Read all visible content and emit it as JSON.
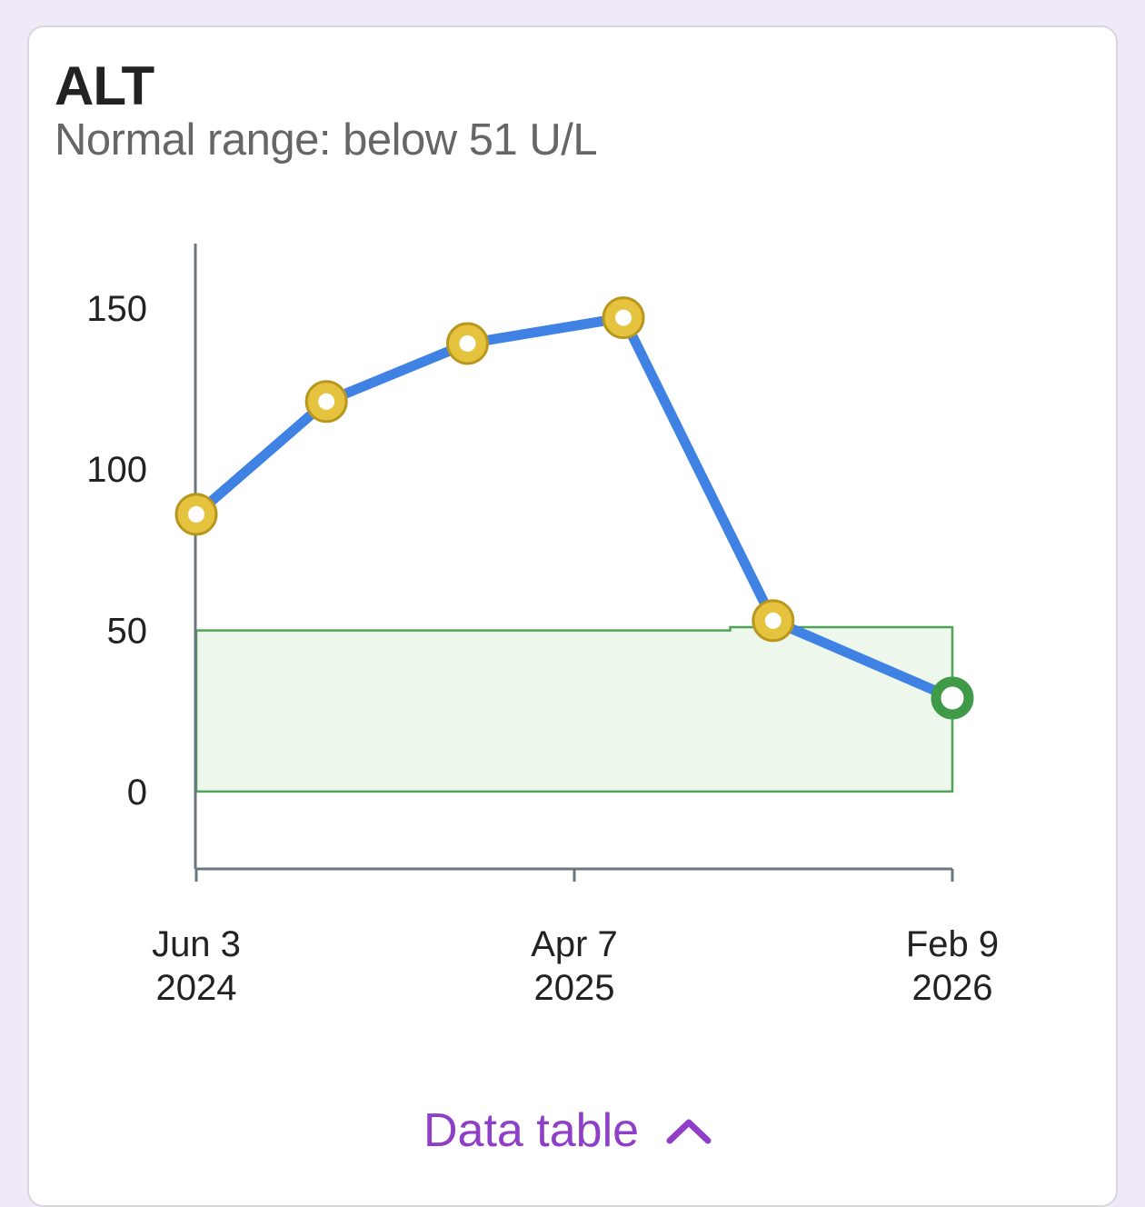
{
  "card": {
    "title": "ALT",
    "subtitle": "Normal range: below 51 U/L",
    "data_table_label": "Data table"
  },
  "colors": {
    "line": "#3f82e4",
    "point_fill": "#e6c33f",
    "point_stroke": "#b9971f",
    "latest_point": "#3f9b48",
    "normal_fill": "#edf7ec",
    "normal_stroke": "#4ea356",
    "axis": "#6b7780",
    "link": "#8f3fc7"
  },
  "chart_data": {
    "type": "line",
    "title": "ALT",
    "ylabel": "",
    "xlabel": "",
    "ylim": [
      -24,
      170
    ],
    "yticks": [
      0,
      50,
      100,
      150
    ],
    "x_ticks": [
      {
        "date": "2024-06-03",
        "line1": "Jun 3",
        "line2": "2024"
      },
      {
        "date": "2025-04-07",
        "line1": "Apr 7",
        "line2": "2025"
      },
      {
        "date": "2026-02-09",
        "line1": "Feb 9",
        "line2": "2026"
      }
    ],
    "xlim": [
      "2024-06-03",
      "2026-02-09"
    ],
    "series": [
      {
        "points": [
          {
            "date": "2024-06-03",
            "value": 86
          },
          {
            "date": "2024-09-17",
            "value": 121
          },
          {
            "date": "2025-01-10",
            "value": 139
          },
          {
            "date": "2025-05-17",
            "value": 147
          },
          {
            "date": "2025-09-16",
            "value": 53
          },
          {
            "date": "2026-02-09",
            "value": 29
          }
        ]
      }
    ],
    "normal_range": {
      "lower": 0,
      "segments": [
        {
          "from": "2024-06-03",
          "to": "2025-08-12",
          "upper": 50
        },
        {
          "from": "2025-08-12",
          "to": "2026-02-09",
          "upper": 51
        }
      ]
    },
    "grid": false,
    "legend": "none"
  }
}
